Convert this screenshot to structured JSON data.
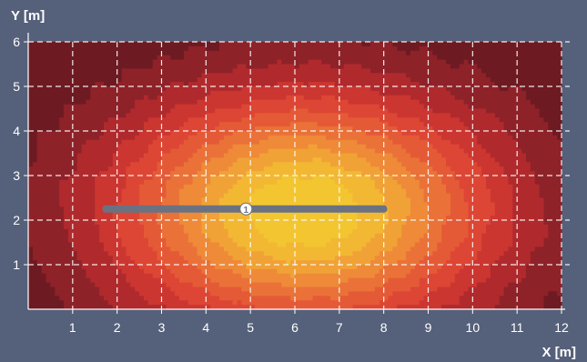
{
  "chart_data": {
    "type": "heatmap",
    "title": "",
    "xlabel": "X [m]",
    "ylabel": "Y [m]",
    "xlim": [
      0,
      12
    ],
    "ylim": [
      0,
      6
    ],
    "x_ticks": [
      "1",
      "2",
      "3",
      "4",
      "5",
      "6",
      "7",
      "8",
      "9",
      "10",
      "11",
      "12"
    ],
    "y_ticks": [
      "1",
      "2",
      "3",
      "4",
      "5",
      "6"
    ],
    "grid": true,
    "colorscale": [
      "#6e1a22",
      "#8e2229",
      "#b02a2d",
      "#cc3631",
      "#dd4634",
      "#e55a36",
      "#ea7238",
      "#ee8a38",
      "#f1a236",
      "#f3b833",
      "#f3c631"
    ],
    "hotspot": {
      "x": 6.2,
      "y": 2.2
    },
    "luminaire": {
      "label": "1",
      "x_start": 1.75,
      "x_end": 8.0,
      "y": 2.25,
      "marker_x": 4.9,
      "color": "#6a7282"
    },
    "background_color": "#55607a"
  }
}
